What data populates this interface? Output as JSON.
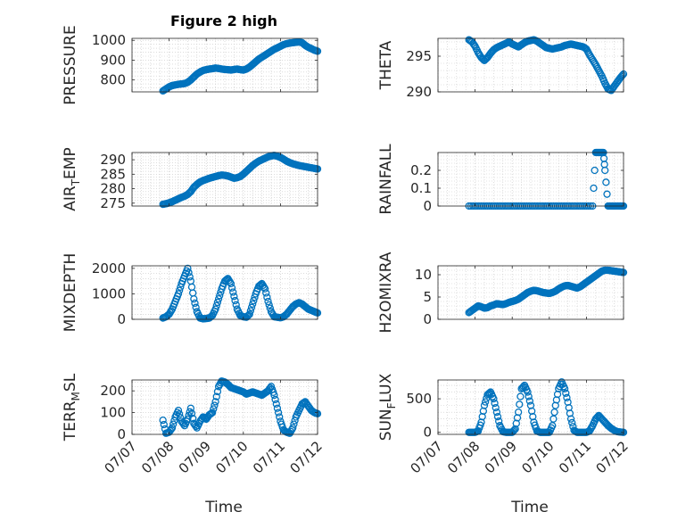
{
  "figure": {
    "title": "Figure 2 high"
  },
  "colors": {
    "marker": "#0072BD",
    "axis": "#262626",
    "grid": "#c8c8c8"
  },
  "chart_data": [
    {
      "type": "scatter",
      "id": "pressure",
      "title": "Figure 2 high",
      "ylabel": {
        "main": "PRESSURE"
      },
      "xlim": [
        "07/07",
        "07/12"
      ],
      "ylim": [
        740,
        1010
      ],
      "yticks": [
        800,
        900,
        1000
      ],
      "x": [
        "07/07 20:00",
        "07/07 22:00",
        "07/08 00:00",
        "07/08 02:00",
        "07/08 04:00",
        "07/08 06:00",
        "07/08 08:00",
        "07/08 10:00",
        "07/08 12:00",
        "07/08 14:00",
        "07/08 16:00",
        "07/08 18:00",
        "07/08 20:00",
        "07/08 22:00",
        "07/09 00:00",
        "07/09 02:00",
        "07/09 04:00",
        "07/09 06:00",
        "07/09 08:00",
        "07/09 10:00",
        "07/09 12:00",
        "07/09 14:00",
        "07/09 16:00",
        "07/09 18:00",
        "07/09 20:00",
        "07/09 22:00",
        "07/10 00:00",
        "07/10 02:00",
        "07/10 04:00",
        "07/10 06:00",
        "07/10 08:00",
        "07/10 10:00",
        "07/10 12:00",
        "07/10 14:00",
        "07/10 16:00",
        "07/10 18:00",
        "07/10 20:00",
        "07/10 22:00",
        "07/11 00:00",
        "07/11 02:00",
        "07/11 04:00",
        "07/11 06:00",
        "07/11 08:00",
        "07/11 10:00",
        "07/11 12:00",
        "07/11 14:00",
        "07/11 16:00",
        "07/11 18:00",
        "07/11 20:00",
        "07/11 22:00",
        "07/12 00:00"
      ],
      "y": [
        745,
        755,
        765,
        772,
        775,
        778,
        780,
        782,
        788,
        800,
        815,
        830,
        840,
        848,
        852,
        855,
        857,
        860,
        858,
        855,
        853,
        852,
        850,
        853,
        855,
        852,
        850,
        855,
        865,
        878,
        892,
        905,
        915,
        925,
        935,
        945,
        955,
        962,
        970,
        978,
        983,
        986,
        988,
        990,
        992,
        988,
        975,
        965,
        958,
        950,
        945
      ]
    },
    {
      "type": "scatter",
      "id": "theta",
      "ylabel": {
        "main": "THETA"
      },
      "xlim": [
        "07/07",
        "07/12"
      ],
      "ylim": [
        290,
        297.5
      ],
      "yticks": [
        290,
        295
      ],
      "x": [
        "07/07 20:00",
        "07/07 22:00",
        "07/08 00:00",
        "07/08 02:00",
        "07/08 04:00",
        "07/08 06:00",
        "07/08 08:00",
        "07/08 10:00",
        "07/08 12:00",
        "07/08 14:00",
        "07/08 16:00",
        "07/08 18:00",
        "07/08 20:00",
        "07/08 22:00",
        "07/09 00:00",
        "07/09 02:00",
        "07/09 04:00",
        "07/09 06:00",
        "07/09 08:00",
        "07/09 10:00",
        "07/09 12:00",
        "07/09 14:00",
        "07/09 16:00",
        "07/09 18:00",
        "07/09 20:00",
        "07/09 22:00",
        "07/10 00:00",
        "07/10 02:00",
        "07/10 04:00",
        "07/10 06:00",
        "07/10 08:00",
        "07/10 10:00",
        "07/10 12:00",
        "07/10 14:00",
        "07/10 16:00",
        "07/10 18:00",
        "07/10 20:00",
        "07/10 22:00",
        "07/11 00:00",
        "07/11 02:00",
        "07/11 04:00",
        "07/11 06:00",
        "07/11 08:00",
        "07/11 10:00",
        "07/11 12:00",
        "07/11 14:00",
        "07/11 16:00",
        "07/11 18:00",
        "07/11 20:00",
        "07/11 22:00",
        "07/12 00:00"
      ],
      "y": [
        297.3,
        297.0,
        296.4,
        295.5,
        294.8,
        294.4,
        294.8,
        295.4,
        295.9,
        296.2,
        296.4,
        296.6,
        296.8,
        297.0,
        296.7,
        296.5,
        296.3,
        296.6,
        296.9,
        297.1,
        297.2,
        297.3,
        297.1,
        296.8,
        296.5,
        296.2,
        296.1,
        296.0,
        296.1,
        296.2,
        296.3,
        296.5,
        296.6,
        296.7,
        296.6,
        296.5,
        296.4,
        296.3,
        296.0,
        295.2,
        294.5,
        293.8,
        293.0,
        292.2,
        291.2,
        290.4,
        290.2,
        290.8,
        291.4,
        292.0,
        292.5
      ]
    },
    {
      "type": "scatter",
      "id": "air-temp",
      "ylabel": {
        "main": "AIR",
        "sub": "T",
        "tail": "EMP"
      },
      "xlim": [
        "07/07",
        "07/12"
      ],
      "ylim": [
        274,
        292.5
      ],
      "yticks": [
        275,
        280,
        285,
        290
      ],
      "x": [
        "07/07 20:00",
        "07/07 22:00",
        "07/08 00:00",
        "07/08 02:00",
        "07/08 04:00",
        "07/08 06:00",
        "07/08 08:00",
        "07/08 10:00",
        "07/08 12:00",
        "07/08 14:00",
        "07/08 16:00",
        "07/08 18:00",
        "07/08 20:00",
        "07/08 22:00",
        "07/09 00:00",
        "07/09 02:00",
        "07/09 04:00",
        "07/09 06:00",
        "07/09 08:00",
        "07/09 10:00",
        "07/09 12:00",
        "07/09 14:00",
        "07/09 16:00",
        "07/09 18:00",
        "07/09 20:00",
        "07/09 22:00",
        "07/10 00:00",
        "07/10 02:00",
        "07/10 04:00",
        "07/10 06:00",
        "07/10 08:00",
        "07/10 10:00",
        "07/10 12:00",
        "07/10 14:00",
        "07/10 16:00",
        "07/10 18:00",
        "07/10 20:00",
        "07/10 22:00",
        "07/11 00:00",
        "07/11 02:00",
        "07/11 04:00",
        "07/11 06:00",
        "07/11 08:00",
        "07/11 10:00",
        "07/11 12:00",
        "07/11 14:00",
        "07/11 16:00",
        "07/11 18:00",
        "07/11 20:00",
        "07/11 22:00",
        "07/12 00:00"
      ],
      "y": [
        274.6,
        274.8,
        275.1,
        275.5,
        276.0,
        276.5,
        277.0,
        277.4,
        278.0,
        279.0,
        280.5,
        281.5,
        282.3,
        282.8,
        283.2,
        283.6,
        283.9,
        284.2,
        284.5,
        284.7,
        284.6,
        284.4,
        284.0,
        283.6,
        283.8,
        284.2,
        285.0,
        286.0,
        287.0,
        288.0,
        288.8,
        289.5,
        290.0,
        290.5,
        291.0,
        291.3,
        291.5,
        291.2,
        290.8,
        290.2,
        289.5,
        289.0,
        288.6,
        288.3,
        288.0,
        287.8,
        287.6,
        287.4,
        287.2,
        287.0,
        286.8
      ]
    },
    {
      "type": "scatter",
      "id": "rainfall",
      "ylabel": {
        "main": "RAINFALL"
      },
      "xlim": [
        "07/07",
        "07/12"
      ],
      "ylim": [
        0,
        0.3
      ],
      "yticks": [
        0,
        0.1,
        0.2
      ],
      "x": [
        "07/07 20:00",
        "07/08 00:00",
        "07/08 04:00",
        "07/08 08:00",
        "07/08 12:00",
        "07/08 16:00",
        "07/08 20:00",
        "07/09 00:00",
        "07/09 04:00",
        "07/09 08:00",
        "07/09 12:00",
        "07/09 16:00",
        "07/09 20:00",
        "07/10 00:00",
        "07/10 04:00",
        "07/10 08:00",
        "07/10 12:00",
        "07/10 16:00",
        "07/10 20:00",
        "07/11 00:00",
        "07/11 04:00",
        "07/11 06:00",
        "07/11 07:00",
        "07/11 08:00",
        "07/11 09:00",
        "07/11 10:00",
        "07/11 11:00",
        "07/11 12:00",
        "07/11 14:00",
        "07/11 16:00",
        "07/11 18:00",
        "07/11 20:00",
        "07/11 22:00",
        "07/12 00:00"
      ],
      "y": [
        0,
        0,
        0,
        0,
        0,
        0,
        0,
        0,
        0,
        0,
        0,
        0,
        0,
        0,
        0,
        0,
        0,
        0,
        0,
        0,
        0,
        0.3,
        0.3,
        0.3,
        0.3,
        0.3,
        0.3,
        0.2,
        0,
        0,
        0,
        0,
        0,
        0
      ]
    },
    {
      "type": "scatter",
      "id": "mixdepth",
      "ylabel": {
        "main": "MIXDEPTH"
      },
      "xlim": [
        "07/07",
        "07/12"
      ],
      "ylim": [
        0,
        2100
      ],
      "yticks": [
        0,
        1000,
        2000
      ],
      "x": [
        "07/07 20:00",
        "07/07 22:00",
        "07/08 00:00",
        "07/08 02:00",
        "07/08 04:00",
        "07/08 06:00",
        "07/08 08:00",
        "07/08 10:00",
        "07/08 12:00",
        "07/08 14:00",
        "07/08 16:00",
        "07/08 18:00",
        "07/08 20:00",
        "07/08 22:00",
        "07/09 00:00",
        "07/09 02:00",
        "07/09 04:00",
        "07/09 06:00",
        "07/09 08:00",
        "07/09 10:00",
        "07/09 12:00",
        "07/09 14:00",
        "07/09 16:00",
        "07/09 18:00",
        "07/09 20:00",
        "07/09 22:00",
        "07/10 00:00",
        "07/10 02:00",
        "07/10 04:00",
        "07/10 06:00",
        "07/10 08:00",
        "07/10 10:00",
        "07/10 12:00",
        "07/10 14:00",
        "07/10 16:00",
        "07/10 18:00",
        "07/10 20:00",
        "07/10 22:00",
        "07/11 00:00",
        "07/11 02:00",
        "07/11 04:00",
        "07/11 06:00",
        "07/11 08:00",
        "07/11 10:00",
        "07/11 12:00",
        "07/11 14:00",
        "07/11 16:00",
        "07/11 18:00",
        "07/11 20:00",
        "07/11 22:00",
        "07/12 00:00"
      ],
      "y": [
        50,
        100,
        200,
        400,
        700,
        1000,
        1400,
        1700,
        2000,
        1500,
        800,
        300,
        50,
        20,
        30,
        50,
        150,
        400,
        800,
        1200,
        1500,
        1600,
        1400,
        900,
        400,
        150,
        100,
        80,
        200,
        600,
        1000,
        1300,
        1400,
        1200,
        700,
        300,
        100,
        80,
        60,
        100,
        200,
        350,
        500,
        600,
        650,
        600,
        500,
        400,
        350,
        300,
        250
      ]
    },
    {
      "type": "scatter",
      "id": "h2omixra",
      "ylabel": {
        "main": "H2OMIXRA"
      },
      "xlim": [
        "07/07",
        "07/12"
      ],
      "ylim": [
        0,
        12
      ],
      "yticks": [
        0,
        5,
        10
      ],
      "x": [
        "07/07 20:00",
        "07/07 22:00",
        "07/08 00:00",
        "07/08 02:00",
        "07/08 04:00",
        "07/08 06:00",
        "07/08 08:00",
        "07/08 10:00",
        "07/08 12:00",
        "07/08 14:00",
        "07/08 16:00",
        "07/08 18:00",
        "07/08 20:00",
        "07/08 22:00",
        "07/09 00:00",
        "07/09 02:00",
        "07/09 04:00",
        "07/09 06:00",
        "07/09 08:00",
        "07/09 10:00",
        "07/09 12:00",
        "07/09 14:00",
        "07/09 16:00",
        "07/09 18:00",
        "07/09 20:00",
        "07/09 22:00",
        "07/10 00:00",
        "07/10 02:00",
        "07/10 04:00",
        "07/10 06:00",
        "07/10 08:00",
        "07/10 10:00",
        "07/10 12:00",
        "07/10 14:00",
        "07/10 16:00",
        "07/10 18:00",
        "07/10 20:00",
        "07/10 22:00",
        "07/11 00:00",
        "07/11 02:00",
        "07/11 04:00",
        "07/11 06:00",
        "07/11 08:00",
        "07/11 10:00",
        "07/11 12:00",
        "07/11 14:00",
        "07/11 16:00",
        "07/11 18:00",
        "07/11 20:00",
        "07/11 22:00",
        "07/12 00:00"
      ],
      "y": [
        1.5,
        2.0,
        2.5,
        3.0,
        2.8,
        2.5,
        2.6,
        3.0,
        3.2,
        3.5,
        3.4,
        3.3,
        3.5,
        3.8,
        4.0,
        4.2,
        4.5,
        5.0,
        5.5,
        6.0,
        6.3,
        6.5,
        6.4,
        6.2,
        6.0,
        5.9,
        5.8,
        6.0,
        6.3,
        6.8,
        7.2,
        7.5,
        7.6,
        7.4,
        7.2,
        7.0,
        7.3,
        7.8,
        8.3,
        8.8,
        9.3,
        9.8,
        10.3,
        10.8,
        11.0,
        11.0,
        10.9,
        10.8,
        10.7,
        10.6,
        10.5
      ]
    },
    {
      "type": "scatter",
      "id": "terr-msl",
      "ylabel": {
        "main": "TERR",
        "sub": "M",
        "tail": "SL"
      },
      "xlim": [
        "07/07",
        "07/12"
      ],
      "ylim": [
        0,
        250
      ],
      "yticks": [
        0,
        100,
        200
      ],
      "x": [
        "07/07 20:00",
        "07/07 22:00",
        "07/08 00:00",
        "07/08 02:00",
        "07/08 04:00",
        "07/08 06:00",
        "07/08 08:00",
        "07/08 10:00",
        "07/08 12:00",
        "07/08 14:00",
        "07/08 16:00",
        "07/08 18:00",
        "07/08 20:00",
        "07/08 22:00",
        "07/09 00:00",
        "07/09 02:00",
        "07/09 04:00",
        "07/09 06:00",
        "07/09 08:00",
        "07/09 10:00",
        "07/09 12:00",
        "07/09 14:00",
        "07/09 16:00",
        "07/09 18:00",
        "07/09 20:00",
        "07/09 22:00",
        "07/10 00:00",
        "07/10 02:00",
        "07/10 04:00",
        "07/10 06:00",
        "07/10 08:00",
        "07/10 10:00",
        "07/10 12:00",
        "07/10 14:00",
        "07/10 16:00",
        "07/10 18:00",
        "07/10 20:00",
        "07/10 22:00",
        "07/11 00:00",
        "07/11 02:00",
        "07/11 04:00",
        "07/11 06:00",
        "07/11 08:00",
        "07/11 10:00",
        "07/11 12:00",
        "07/11 14:00",
        "07/11 16:00",
        "07/11 18:00",
        "07/11 20:00",
        "07/11 22:00",
        "07/12 00:00"
      ],
      "y": [
        65,
        5,
        10,
        30,
        80,
        110,
        60,
        40,
        70,
        120,
        50,
        30,
        60,
        80,
        70,
        90,
        100,
        150,
        220,
        245,
        240,
        230,
        215,
        210,
        205,
        200,
        195,
        185,
        190,
        195,
        190,
        185,
        180,
        190,
        200,
        220,
        180,
        120,
        60,
        20,
        10,
        5,
        30,
        80,
        110,
        140,
        150,
        130,
        110,
        100,
        95
      ]
    },
    {
      "type": "scatter",
      "id": "sun-flux",
      "ylabel": {
        "main": "SUN",
        "sub": "F",
        "tail": "LUX"
      },
      "xlim": [
        "07/07",
        "07/12"
      ],
      "ylim": [
        -30,
        780
      ],
      "yticks": [
        0,
        500
      ],
      "x": [
        "07/07 20:00",
        "07/07 22:00",
        "07/08 00:00",
        "07/08 02:00",
        "07/08 04:00",
        "07/08 06:00",
        "07/08 08:00",
        "07/08 10:00",
        "07/08 12:00",
        "07/08 14:00",
        "07/08 16:00",
        "07/08 18:00",
        "07/08 20:00",
        "07/08 22:00",
        "07/09 00:00",
        "07/09 02:00",
        "07/09 04:00",
        "07/09 06:00",
        "07/09 08:00",
        "07/09 10:00",
        "07/09 12:00",
        "07/09 14:00",
        "07/09 16:00",
        "07/09 18:00",
        "07/09 20:00",
        "07/09 22:00",
        "07/10 00:00",
        "07/10 02:00",
        "07/10 04:00",
        "07/10 06:00",
        "07/10 08:00",
        "07/10 10:00",
        "07/10 12:00",
        "07/10 14:00",
        "07/10 16:00",
        "07/10 18:00",
        "07/10 20:00",
        "07/10 22:00",
        "07/11 00:00",
        "07/11 02:00",
        "07/11 04:00",
        "07/11 06:00",
        "07/11 08:00",
        "07/11 10:00",
        "07/11 12:00",
        "07/11 14:00",
        "07/11 16:00",
        "07/11 18:00",
        "07/11 20:00",
        "07/11 22:00",
        "07/12 00:00"
      ],
      "y": [
        0,
        0,
        0,
        20,
        150,
        400,
        560,
        600,
        500,
        300,
        100,
        10,
        0,
        0,
        0,
        50,
        300,
        650,
        700,
        600,
        400,
        150,
        20,
        0,
        0,
        0,
        0,
        100,
        400,
        650,
        750,
        650,
        450,
        200,
        30,
        0,
        0,
        0,
        0,
        20,
        100,
        200,
        250,
        200,
        150,
        100,
        60,
        30,
        10,
        5,
        0
      ]
    }
  ],
  "xaxis": {
    "ticks": [
      "07/07",
      "07/08",
      "07/09",
      "07/10",
      "07/11",
      "07/12"
    ],
    "label": "Time"
  }
}
